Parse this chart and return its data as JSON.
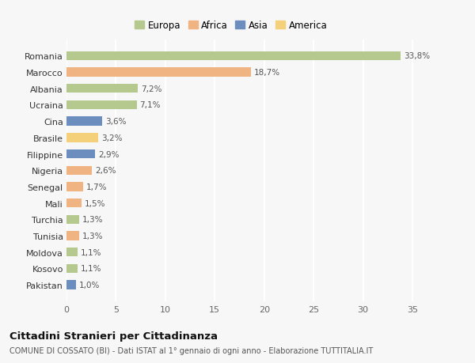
{
  "categories": [
    "Romania",
    "Marocco",
    "Albania",
    "Ucraina",
    "Cina",
    "Brasile",
    "Filippine",
    "Nigeria",
    "Senegal",
    "Mali",
    "Turchia",
    "Tunisia",
    "Moldova",
    "Kosovo",
    "Pakistan"
  ],
  "values": [
    33.8,
    18.7,
    7.2,
    7.1,
    3.6,
    3.2,
    2.9,
    2.6,
    1.7,
    1.5,
    1.3,
    1.3,
    1.1,
    1.1,
    1.0
  ],
  "labels": [
    "33,8%",
    "18,7%",
    "7,2%",
    "7,1%",
    "3,6%",
    "3,2%",
    "2,9%",
    "2,6%",
    "1,7%",
    "1,5%",
    "1,3%",
    "1,3%",
    "1,1%",
    "1,1%",
    "1,0%"
  ],
  "colors": [
    "#b5c98e",
    "#f0b482",
    "#b5c98e",
    "#b5c98e",
    "#6c8ebf",
    "#f5d07a",
    "#6c8ebf",
    "#f0b482",
    "#f0b482",
    "#f0b482",
    "#b5c98e",
    "#f0b482",
    "#b5c98e",
    "#b5c98e",
    "#6c8ebf"
  ],
  "legend_labels": [
    "Europa",
    "Africa",
    "Asia",
    "America"
  ],
  "legend_colors": [
    "#b5c98e",
    "#f0b482",
    "#6c8ebf",
    "#f5d07a"
  ],
  "title": "Cittadini Stranieri per Cittadinanza",
  "subtitle": "COMUNE DI COSSATO (BI) - Dati ISTAT al 1° gennaio di ogni anno - Elaborazione TUTTITALIA.IT",
  "xlim": [
    0,
    37
  ],
  "xticks": [
    0,
    5,
    10,
    15,
    20,
    25,
    30,
    35
  ],
  "bg_color": "#f7f7f7",
  "bar_height": 0.55
}
